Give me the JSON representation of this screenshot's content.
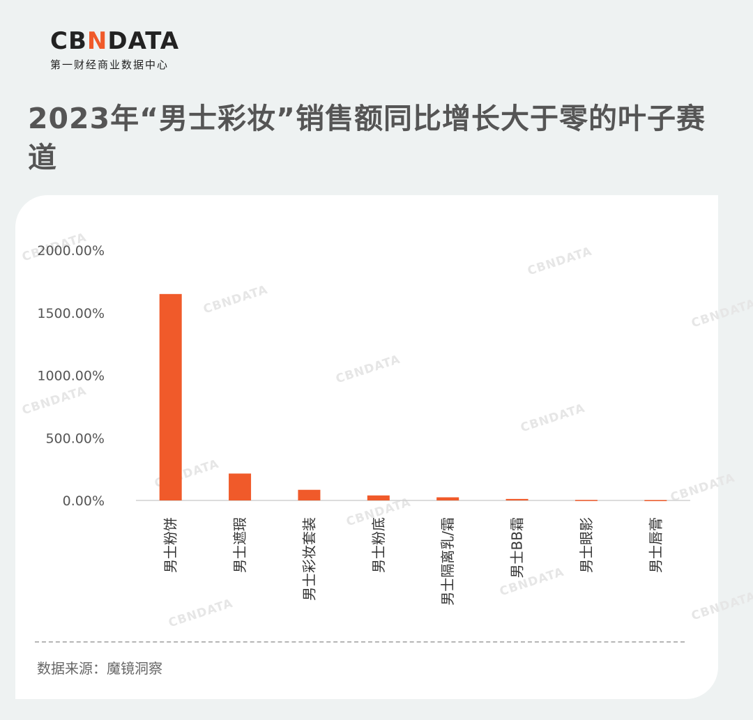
{
  "logo": {
    "brand_prefix": "CB",
    "brand_accent": "N",
    "brand_suffix": "DATA",
    "subtitle": "第一财经商业数据中心"
  },
  "title": "2023年“男士彩妆”销售额同比增长大于零的叶子赛道",
  "source": "数据来源：魔镜洞察",
  "colors": {
    "bar": "#f05a2a",
    "accent": "#f05a2a",
    "text": "#555555"
  },
  "chart_data": {
    "type": "bar",
    "title": "",
    "xlabel": "",
    "ylabel": "",
    "ylim": [
      0,
      2000
    ],
    "yticks": [
      "2000.00%",
      "1500.00%",
      "1000.00%",
      "500.00%",
      "0.00%"
    ],
    "ytick_values": [
      2000,
      1500,
      1000,
      500,
      0
    ],
    "categories": [
      "男士粉饼",
      "男士遮瑕",
      "男士彩妆套装",
      "男士粉底",
      "男士隔离乳/霜",
      "男士BB霜",
      "男士眼影",
      "男士唇膏"
    ],
    "values": [
      1650,
      215,
      85,
      40,
      25,
      12,
      4,
      3
    ],
    "grid": false,
    "legend": "none"
  }
}
